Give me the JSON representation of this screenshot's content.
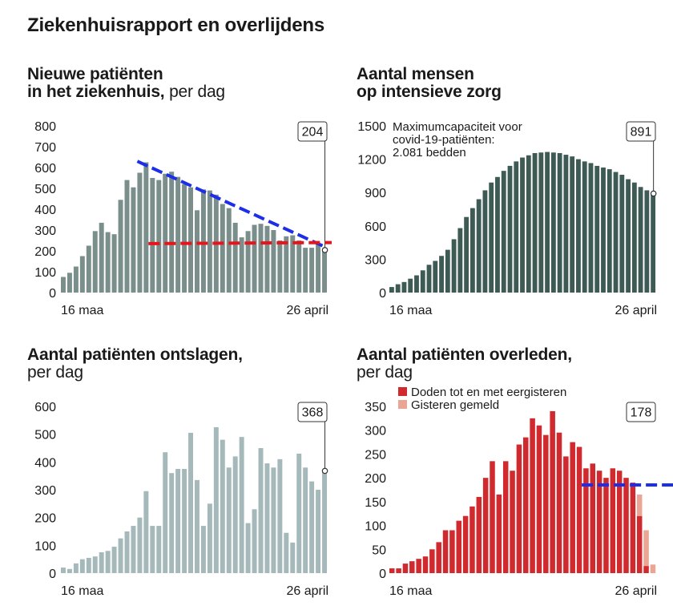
{
  "header": {
    "title": "Ziekenhuisrapport en overlijdens"
  },
  "colors": {
    "admissions": "#7a8e8b",
    "icu": "#3d5a55",
    "discharged": "#a5b9bb",
    "deaths": "#d02a2e",
    "deaths_reported": "#eba594",
    "annotation_blue": "#1c2ee8",
    "annotation_red": "#e8141c",
    "axis_text": "#1a1a1a"
  },
  "chart_data": [
    {
      "id": "admissions",
      "type": "bar",
      "title": "Nieuwe patiënten",
      "title_line2": "in het ziekenhuis,",
      "subtitle": "per dag",
      "x_start_label": "16 maa",
      "x_end_label": "26 april",
      "ylim": [
        0,
        800
      ],
      "yticks": [
        0,
        100,
        200,
        300,
        400,
        500,
        600,
        700,
        800
      ],
      "callout": "204",
      "values": [
        75,
        95,
        125,
        175,
        225,
        295,
        335,
        290,
        280,
        445,
        540,
        505,
        575,
        625,
        550,
        540,
        570,
        580,
        555,
        520,
        505,
        395,
        495,
        490,
        470,
        425,
        405,
        335,
        265,
        295,
        325,
        330,
        320,
        300,
        250,
        270,
        275,
        250,
        215,
        215,
        235,
        204
      ],
      "annotations": [
        {
          "type": "dashed-trend",
          "color": "blue",
          "from": [
            12,
            630
          ],
          "to": [
            41,
            215
          ]
        },
        {
          "type": "dashed-level",
          "color": "red",
          "from": [
            14,
            235
          ],
          "to": [
            41,
            240
          ]
        }
      ]
    },
    {
      "id": "icu",
      "type": "bar",
      "title": "Aantal mensen",
      "title_line2": "op intensieve zorg",
      "subtitle": "",
      "x_start_label": "16 maa",
      "x_end_label": "26 april",
      "ylim": [
        0,
        1500
      ],
      "yticks": [
        0,
        300,
        600,
        900,
        1200,
        1500
      ],
      "callout": "891",
      "note": "Maximumcapaciteit voor covid-19-patiënten: 2.081 bedden",
      "note_lines": [
        "Maximumcapaciteit voor",
        "covid-19-patiënten:",
        "2.081 bedden"
      ],
      "values": [
        50,
        75,
        95,
        125,
        155,
        200,
        250,
        285,
        330,
        385,
        480,
        580,
        680,
        760,
        840,
        920,
        990,
        1040,
        1095,
        1140,
        1180,
        1215,
        1235,
        1255,
        1260,
        1265,
        1260,
        1255,
        1240,
        1225,
        1200,
        1180,
        1165,
        1140,
        1125,
        1110,
        1085,
        1060,
        1020,
        990,
        950,
        920,
        891
      ]
    },
    {
      "id": "discharged",
      "type": "bar",
      "title": "Aantal patiënten ontslagen,",
      "subtitle": "per dag",
      "x_start_label": "16 maa",
      "x_end_label": "26 april",
      "ylim": [
        0,
        600
      ],
      "yticks": [
        0,
        100,
        200,
        300,
        400,
        500,
        600
      ],
      "callout": "368",
      "values": [
        20,
        15,
        35,
        50,
        55,
        60,
        75,
        80,
        95,
        125,
        150,
        170,
        200,
        295,
        170,
        170,
        435,
        360,
        375,
        375,
        505,
        335,
        170,
        250,
        525,
        480,
        380,
        420,
        490,
        180,
        230,
        450,
        395,
        380,
        410,
        145,
        110,
        430,
        380,
        330,
        300,
        368
      ]
    },
    {
      "id": "deaths",
      "type": "stacked-bar",
      "title": "Aantal patiënten overleden,",
      "subtitle": "per dag",
      "x_start_label": "16 maa",
      "x_end_label": "26 april",
      "ylim": [
        0,
        350
      ],
      "yticks": [
        0,
        50,
        100,
        150,
        200,
        250,
        300,
        350
      ],
      "callout": "178",
      "legend": [
        "Doden tot en met eergisteren",
        "Gisteren gemeld"
      ],
      "series": [
        {
          "name": "Doden tot en met eergisteren",
          "values": [
            10,
            10,
            20,
            25,
            30,
            35,
            50,
            65,
            90,
            90,
            110,
            120,
            140,
            160,
            200,
            235,
            165,
            235,
            215,
            270,
            285,
            325,
            310,
            290,
            340,
            295,
            245,
            275,
            265,
            220,
            230,
            215,
            200,
            220,
            215,
            200,
            190,
            120,
            15,
            0
          ]
        },
        {
          "name": "Gisteren gemeld",
          "values": [
            0,
            0,
            0,
            0,
            0,
            0,
            0,
            0,
            0,
            0,
            0,
            0,
            0,
            0,
            0,
            0,
            0,
            0,
            0,
            0,
            0,
            0,
            0,
            0,
            0,
            0,
            0,
            0,
            0,
            0,
            0,
            0,
            0,
            0,
            0,
            0,
            0,
            45,
            75,
            18
          ]
        }
      ],
      "annotations": [
        {
          "type": "dashed-level",
          "color": "blue",
          "from": [
            29,
            185
          ],
          "to": [
            40,
            185
          ]
        }
      ]
    }
  ]
}
